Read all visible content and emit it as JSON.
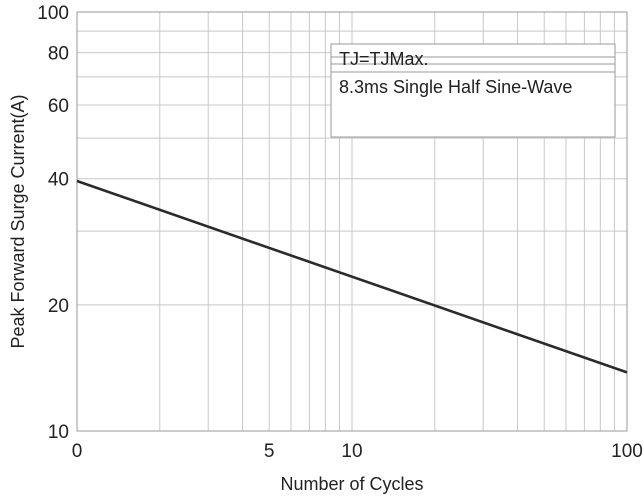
{
  "chart_data": {
    "type": "line",
    "title": "",
    "xlabel": "Number of Cycles",
    "ylabel": "Peak Forward Surge Current(A)",
    "x_scale": "log",
    "y_scale": "log",
    "xlim": [
      1,
      100
    ],
    "ylim": [
      10,
      100
    ],
    "grid": true,
    "x_ticks": [
      {
        "value": 1,
        "label": "0"
      },
      {
        "value": 5,
        "label": "5"
      },
      {
        "value": 10,
        "label": "10"
      },
      {
        "value": 100,
        "label": "100"
      }
    ],
    "y_ticks": [
      {
        "value": 10,
        "label": "10"
      },
      {
        "value": 20,
        "label": "20"
      },
      {
        "value": 40,
        "label": "40"
      },
      {
        "value": 60,
        "label": "60"
      },
      {
        "value": 80,
        "label": "80"
      },
      {
        "value": 100,
        "label": "100"
      }
    ],
    "series": [
      {
        "x": [
          1,
          100
        ],
        "y": [
          39.5,
          13.8
        ]
      }
    ],
    "annotation_lines": [
      "TJ=TJMax.",
      "8.3ms Single Half Sine-Wave"
    ],
    "annotation_placement": "top-right",
    "colors": {
      "line": "#2b2b2b",
      "grid": "#c8c8c8",
      "frame": "#9a9a9a",
      "text": "#222222"
    }
  }
}
